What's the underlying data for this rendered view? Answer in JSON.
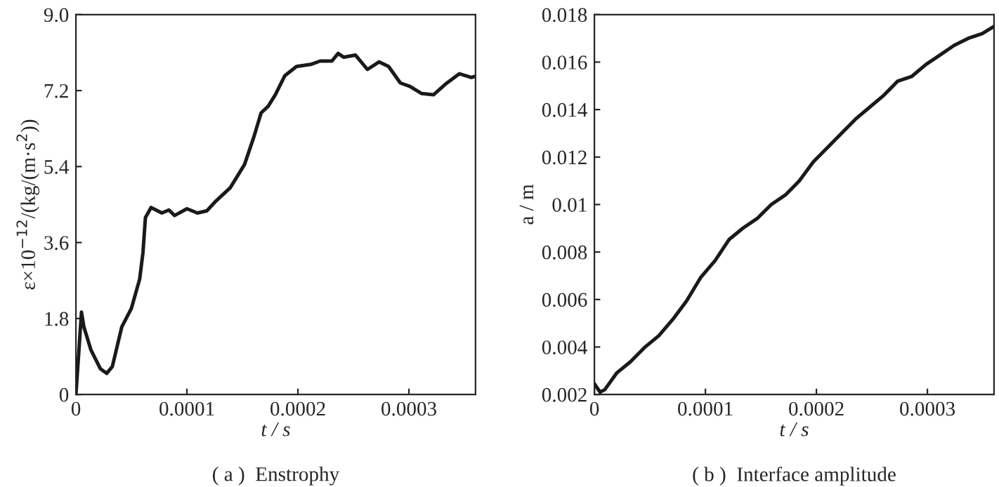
{
  "chart_data": [
    {
      "type": "line",
      "xlabel": "t / s",
      "ylabel": "ε×10$^{−12}$/(kg/(m·s$^{2}$))",
      "annotations": [
        "( a )  Enstrophy"
      ],
      "xlim": [
        0,
        0.00036
      ],
      "xticks": [
        0,
        0.0001,
        0.0002,
        0.0003
      ],
      "ylim": [
        0,
        9
      ],
      "yticks": [
        0,
        1.8,
        3.6,
        5.4,
        7.2,
        {
          "value": 9,
          "label": "9.0"
        }
      ],
      "grid": false,
      "legend": false,
      "series": [
        {
          "color": "#1a1a1a",
          "x": [
            0,
            3e-06,
            5e-06,
            7.2e-06,
            1.36e-05,
            2.2e-05,
            2.77e-05,
            3.28e-05,
            4.13e-05,
            5e-05,
            5.74e-05,
            6.04e-05,
            6.26e-05,
            6.77e-05,
            7.74e-05,
            8.38e-05,
            8.89e-05,
            0.0001,
            0.0001094,
            0.0001179,
            0.0001264,
            0.0001391,
            0.0001519,
            0.0001604,
            0.0001668,
            0.0001732,
            0.0001796,
            0.0001881,
            0.0001987,
            0.0002115,
            0.00022,
            0.0002306,
            0.0002362,
            0.0002413,
            0.0002519,
            0.0002626,
            0.0002732,
            0.0002817,
            0.0002923,
            0.0003009,
            0.0003115,
            0.0003221,
            0.0003328,
            0.0003455,
            0.0003562,
            0.00036
          ],
          "values": [
            0,
            1.16,
            1.95,
            1.6,
            1.05,
            0.61,
            0.5,
            0.66,
            1.6,
            2.04,
            2.73,
            3.36,
            4.19,
            4.43,
            4.3,
            4.37,
            4.24,
            4.4,
            4.3,
            4.35,
            4.59,
            4.9,
            5.45,
            6.11,
            6.67,
            6.83,
            7.1,
            7.55,
            7.77,
            7.82,
            7.9,
            7.9,
            8.08,
            7.99,
            8.04,
            7.7,
            7.88,
            7.77,
            7.38,
            7.3,
            7.13,
            7.1,
            7.35,
            7.6,
            7.51,
            7.54
          ]
        }
      ]
    },
    {
      "type": "line",
      "xlabel": "t / s",
      "ylabel": "a / m",
      "annotations": [
        "( b )  Interface amplitude"
      ],
      "xlim": [
        0,
        0.00036
      ],
      "xticks": [
        0,
        0.0001,
        0.0002,
        0.0003
      ],
      "ylim": [
        0.002,
        0.018
      ],
      "yticks": [
        0.002,
        0.004,
        0.006,
        0.008,
        0.01,
        0.012,
        0.014,
        0.016,
        0.018
      ],
      "grid": false,
      "legend": false,
      "series": [
        {
          "color": "#1a1a1a",
          "x": [
            0,
            5.1e-06,
            9.3e-06,
            2e-05,
            3.25e-05,
            4.52e-05,
            5.79e-05,
            7.06e-05,
            8.32e-05,
            9.59e-05,
            0.0001086,
            0.0001212,
            0.0001339,
            0.0001466,
            0.0001593,
            0.000172,
            0.0001846,
            0.0001973,
            0.00021,
            0.0002226,
            0.0002353,
            0.000248,
            0.0002607,
            0.0002733,
            0.000286,
            0.0002987,
            0.0003114,
            0.000324,
            0.0003367,
            0.0003494,
            0.00036
          ],
          "values": [
            0.00245,
            0.0021,
            0.0022,
            0.0029,
            0.00338,
            0.00398,
            0.00447,
            0.00516,
            0.00595,
            0.00694,
            0.00763,
            0.00852,
            0.00901,
            0.00941,
            0.01,
            0.0104,
            0.011,
            0.0118,
            0.0124,
            0.013,
            0.0136,
            0.0141,
            0.0146,
            0.0152,
            0.0154,
            0.0159,
            0.0163,
            0.0167,
            0.017,
            0.0172,
            0.0175
          ]
        }
      ]
    }
  ]
}
